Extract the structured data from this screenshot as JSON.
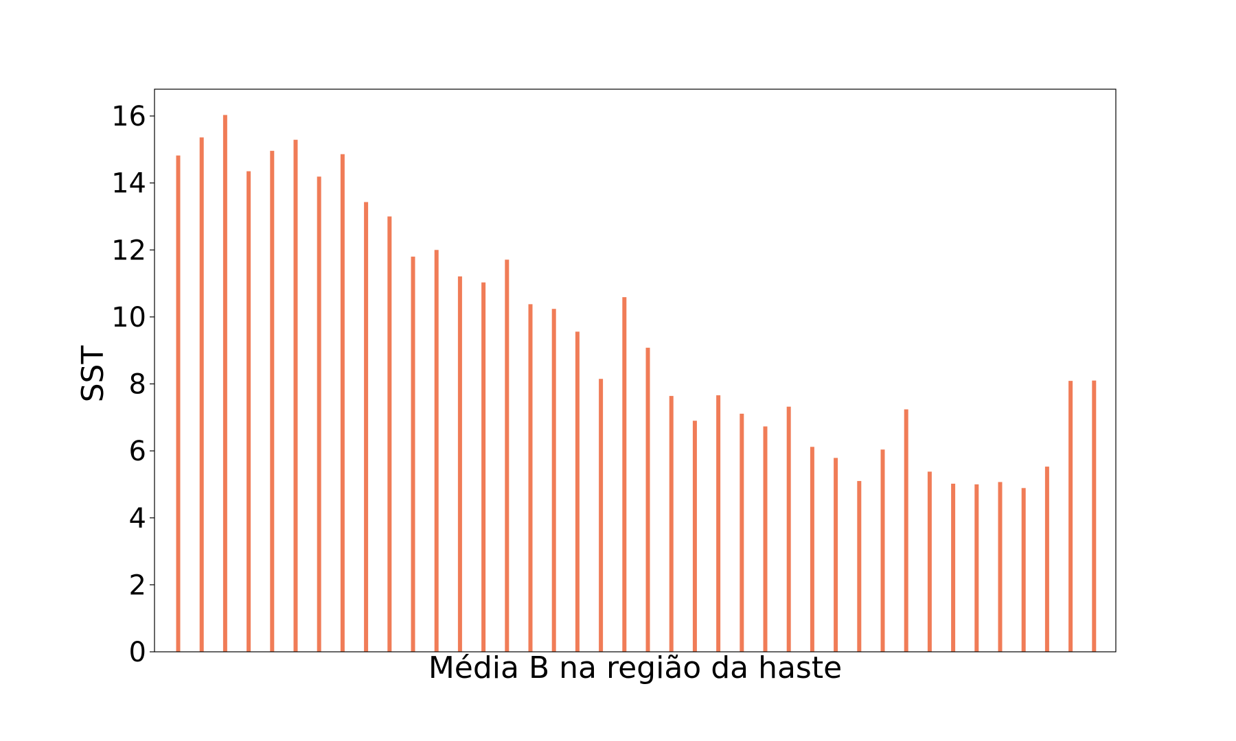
{
  "chart_data": {
    "type": "bar",
    "xlabel": "Média B na região da haste",
    "ylabel": "SST",
    "ylim": [
      0,
      16.8
    ],
    "yticks": [
      0,
      2,
      4,
      6,
      8,
      10,
      12,
      14,
      16
    ],
    "grid": false,
    "legend": "none",
    "bar_color": "#f07c57",
    "values": [
      14.82,
      15.36,
      16.03,
      14.35,
      14.96,
      15.29,
      14.19,
      14.86,
      13.43,
      13.0,
      11.8,
      12.0,
      11.21,
      11.03,
      11.71,
      10.38,
      10.24,
      9.56,
      8.15,
      10.59,
      9.08,
      7.64,
      6.9,
      7.66,
      7.11,
      6.73,
      7.32,
      6.12,
      5.79,
      5.1,
      6.04,
      7.24,
      5.38,
      5.02,
      5.0,
      5.07,
      4.89,
      5.53,
      8.09,
      8.1
    ]
  }
}
